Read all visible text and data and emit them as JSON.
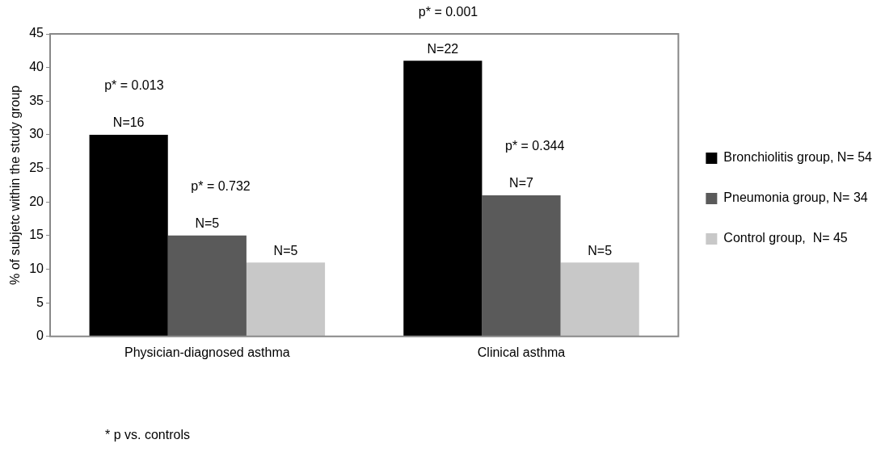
{
  "chart_data": {
    "type": "bar",
    "ylabel": "% of subjetc within the study group",
    "categories": [
      "Physician-diagnosed asthma",
      "Clinical asthma"
    ],
    "series": [
      {
        "name": "Bronchiolitis group, N= 54",
        "color": "#000000",
        "values": [
          30,
          41
        ]
      },
      {
        "name": "Pneumonia group, N= 34",
        "color": "#5a5a5a",
        "values": [
          15,
          21
        ]
      },
      {
        "name": "Control group,  N= 45",
        "color": "#c8c8c8",
        "values": [
          11,
          11
        ]
      }
    ],
    "ylim": [
      0,
      45
    ],
    "yticks": [
      0,
      5,
      10,
      15,
      20,
      25,
      30,
      35,
      40,
      45
    ],
    "grid": false,
    "legend": "right",
    "annotations": [
      "N=16",
      "N=5",
      "N=5",
      "N=22",
      "N=7",
      "N=5",
      "p* = 0.013",
      "p* = 0.732",
      "p* = 0.001",
      "p* = 0.344",
      "* p vs. controls"
    ]
  }
}
